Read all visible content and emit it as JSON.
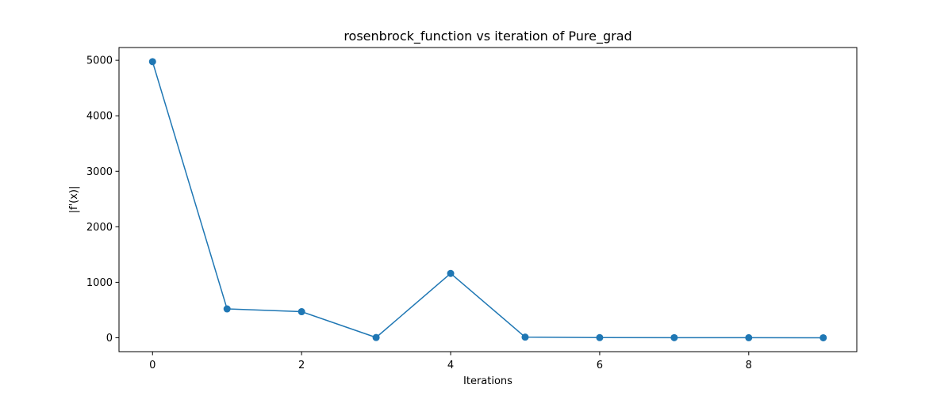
{
  "chart_data": {
    "type": "line",
    "title": "rosenbrock_function vs iteration of Pure_grad",
    "xlabel": "Iterations",
    "ylabel": "|f'(x)|",
    "x": [
      0,
      1,
      2,
      3,
      4,
      5,
      6,
      7,
      8,
      9
    ],
    "series": [
      {
        "values": [
          4975,
          520,
          470,
          5,
          1160,
          12,
          3,
          2,
          1,
          0
        ]
      }
    ],
    "xlim": [
      -0.45,
      9.45
    ],
    "ylim": [
      -250,
      5230
    ],
    "xticks": [
      0,
      2,
      4,
      6,
      8
    ],
    "yticks": [
      0,
      1000,
      2000,
      3000,
      4000,
      5000
    ],
    "grid": false,
    "color": "#1f77b4"
  }
}
